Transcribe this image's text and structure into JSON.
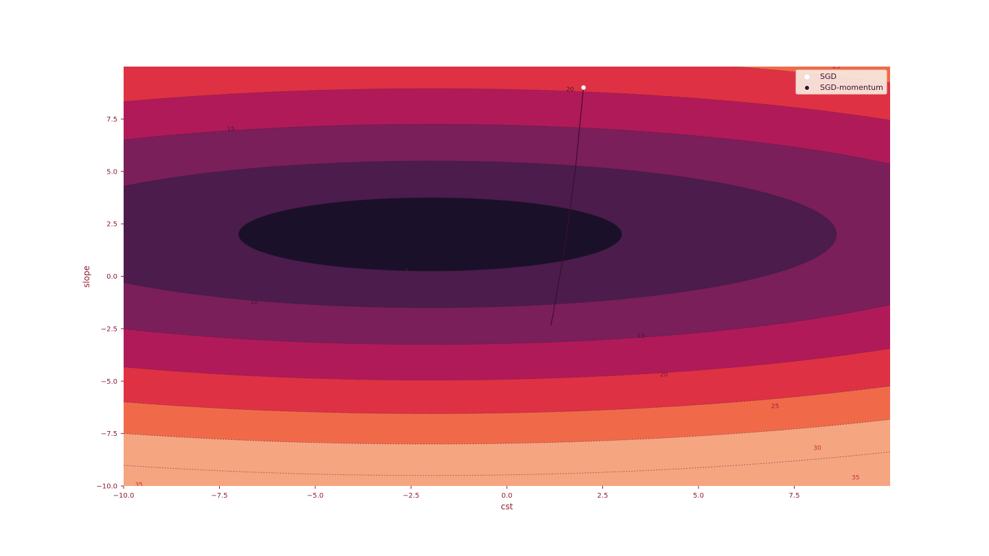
{
  "chart_data": {
    "type": "contour",
    "title": "",
    "xlabel": "cst",
    "ylabel": "slope",
    "xlim": [
      -10,
      10
    ],
    "ylim": [
      -10,
      10
    ],
    "xticks": [
      "−10.0",
      "−7.5",
      "−5.0",
      "−2.5",
      "0.0",
      "2.5",
      "5.0",
      "7.5"
    ],
    "xtick_values": [
      -10,
      -7.5,
      -5,
      -2.5,
      0,
      2.5,
      5,
      7.5
    ],
    "yticks": [
      "−10.0",
      "−7.5",
      "−5.0",
      "−2.5",
      "0.0",
      "2.5",
      "5.0",
      "7.5"
    ],
    "ytick_values": [
      -10,
      -7.5,
      -5,
      -2.5,
      0,
      2.5,
      5,
      7.5
    ],
    "surface": {
      "center": [
        -2,
        2
      ],
      "level_a": [
        5,
        10,
        15,
        20,
        25,
        30,
        35
      ],
      "half_width_x": [
        5,
        10.6,
        15.6,
        19.3,
        22.5,
        25.5,
        27.8
      ],
      "half_height_y": [
        1.75,
        3.5,
        5.25,
        6.95,
        8.55,
        10.0,
        11.5
      ],
      "colors": [
        "#1a1029",
        "#4b1c4c",
        "#7a1f59",
        "#b11a59",
        "#df3144",
        "#f06a4a",
        "#f6a581"
      ],
      "outer_color": "#f6a581",
      "band_labels": [
        {
          "text": "5",
          "x": -2.6,
          "y": 0.25,
          "color": "#3d1a3d"
        },
        {
          "text": "10",
          "x": -6.6,
          "y": -1.25,
          "color": "#3d1a3d"
        },
        {
          "text": "15",
          "x": -7.2,
          "y": 7.0,
          "color": "#3d1a3d"
        },
        {
          "text": "15",
          "x": 3.5,
          "y": -2.85,
          "color": "#3d1a3d"
        },
        {
          "text": "20",
          "x": 1.65,
          "y": 8.9,
          "color": "#4a1535"
        },
        {
          "text": "20",
          "x": 4.1,
          "y": -4.7,
          "color": "#6e1a3f"
        },
        {
          "text": "25",
          "x": 7.0,
          "y": -6.2,
          "color": "#9e1f3f"
        },
        {
          "text": "25",
          "x": 8.6,
          "y": 10.0,
          "color": "#9e1f3f"
        },
        {
          "text": "30",
          "x": 8.1,
          "y": -8.2,
          "color": "#c0333f"
        },
        {
          "text": "35",
          "x": -9.6,
          "y": -9.95,
          "color": "#c0333f"
        },
        {
          "text": "35",
          "x": 9.1,
          "y": -9.6,
          "color": "#c0333f"
        }
      ]
    },
    "series": [
      {
        "name": "SGD",
        "marker": "circle",
        "color": "#ffffff",
        "x": [
          2.0
        ],
        "y": [
          9.0
        ]
      },
      {
        "name": "SGD-momentum",
        "marker": "circle",
        "color": "#3b0f2f",
        "x": [
          2.0,
          1.8,
          1.6,
          1.45,
          1.3,
          1.2,
          1.15
        ],
        "y": [
          9.0,
          5.3,
          2.5,
          0.7,
          -0.8,
          -1.9,
          -2.3
        ]
      }
    ],
    "legend": "top-right"
  }
}
